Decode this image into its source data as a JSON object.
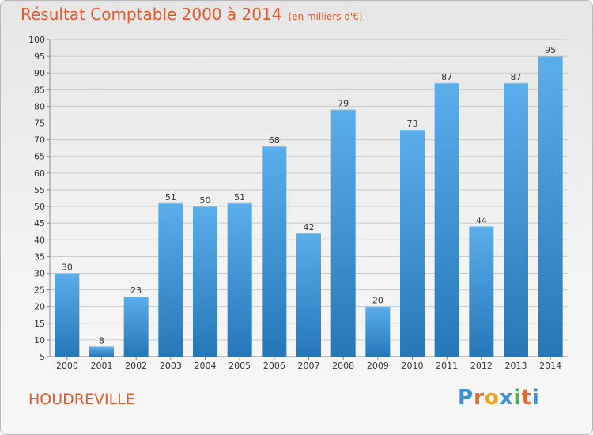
{
  "header": {
    "title": "Résultat Comptable 2000 à 2014",
    "subtitle": "(en milliers d'€)"
  },
  "footer": {
    "city": "HOUDREVILLE",
    "brand": [
      "P",
      "r",
      "o",
      "x",
      "i",
      "t",
      "i"
    ],
    "brand_colors": [
      "#3a8fd8",
      "#e8652b",
      "#f2a31b",
      "#3a8fd8",
      "#4db34d",
      "#e8652b",
      "#3a8fd8"
    ]
  },
  "chart_data": {
    "type": "bar",
    "title": "Résultat Comptable 2000 à 2014",
    "subtitle": "(en milliers d'€)",
    "xlabel": "",
    "ylabel": "",
    "categories": [
      "2000",
      "2001",
      "2002",
      "2003",
      "2004",
      "2005",
      "2006",
      "2007",
      "2008",
      "2009",
      "2010",
      "2011",
      "2012",
      "2013",
      "2014"
    ],
    "values": [
      30,
      8,
      23,
      51,
      50,
      51,
      68,
      42,
      79,
      20,
      73,
      87,
      44,
      87,
      95
    ],
    "ylim": [
      5,
      100
    ],
    "yticks": [
      5,
      10,
      15,
      20,
      25,
      30,
      35,
      40,
      45,
      50,
      55,
      60,
      65,
      70,
      75,
      80,
      85,
      90,
      95,
      100
    ],
    "grid": true,
    "bar_color_top": "#5aaeea",
    "bar_color_bottom": "#2677b8"
  }
}
